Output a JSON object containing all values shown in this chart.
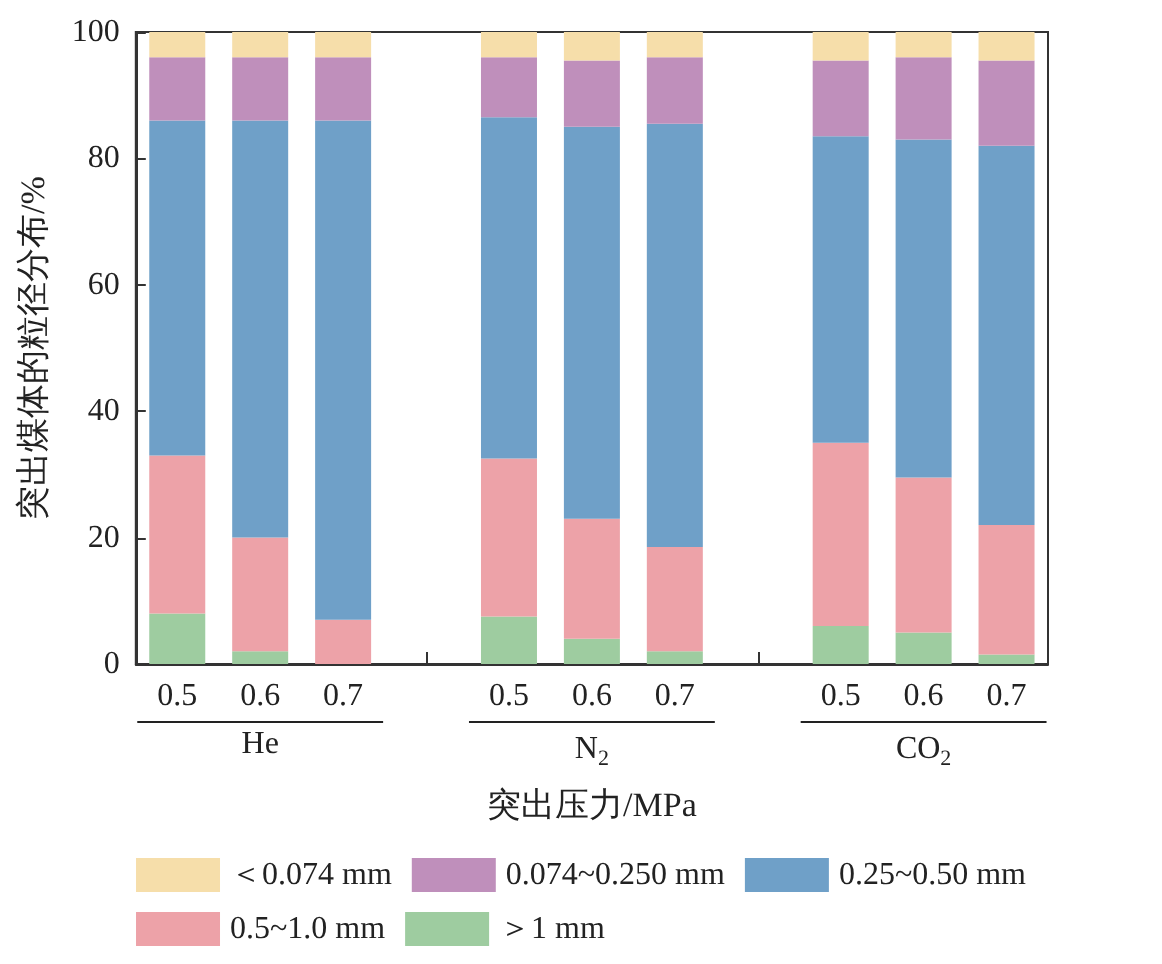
{
  "chart_data": {
    "type": "bar",
    "stacked": true,
    "xlabel": "突出压力/MPa",
    "ylabel": "突出煤体的粒径分布/%",
    "categories": [
      "0.5",
      "0.6",
      "0.7",
      null,
      "0.5",
      "0.6",
      "0.7",
      null,
      "0.5",
      "0.6",
      "0.7"
    ],
    "series": [
      {
        "name": "＞1 mm",
        "color": "#9ecca0",
        "values": [
          8,
          2,
          0,
          null,
          7.5,
          4,
          2,
          null,
          6,
          5,
          1.5
        ]
      },
      {
        "name": "0.5~1.0 mm",
        "color": "#eda2a8",
        "values": [
          25,
          18,
          7,
          null,
          25,
          19,
          16.5,
          null,
          29,
          24.5,
          20.5
        ]
      },
      {
        "name": "0.25~0.50 mm",
        "color": "#6fa0c8",
        "values": [
          53,
          66,
          79,
          null,
          54,
          62,
          67,
          null,
          48.5,
          53.5,
          60
        ]
      },
      {
        "name": "0.074~0.250 mm",
        "color": "#bf8fbb",
        "values": [
          10,
          10,
          10,
          null,
          9.5,
          10.5,
          10.5,
          null,
          12,
          13,
          13.5
        ]
      },
      {
        "name": "＜0.074 mm",
        "color": "#f6deaa",
        "values": [
          4,
          4,
          4,
          null,
          4,
          4.5,
          4,
          null,
          4.5,
          4,
          4.5
        ]
      }
    ],
    "annotations": [
      "He",
      "N$_{2}$",
      "CO$_{2}$"
    ],
    "ylim": [
      0,
      100
    ],
    "yticks": [
      0,
      20,
      40,
      60,
      80,
      100
    ],
    "grid": false,
    "legend": "bottom"
  }
}
